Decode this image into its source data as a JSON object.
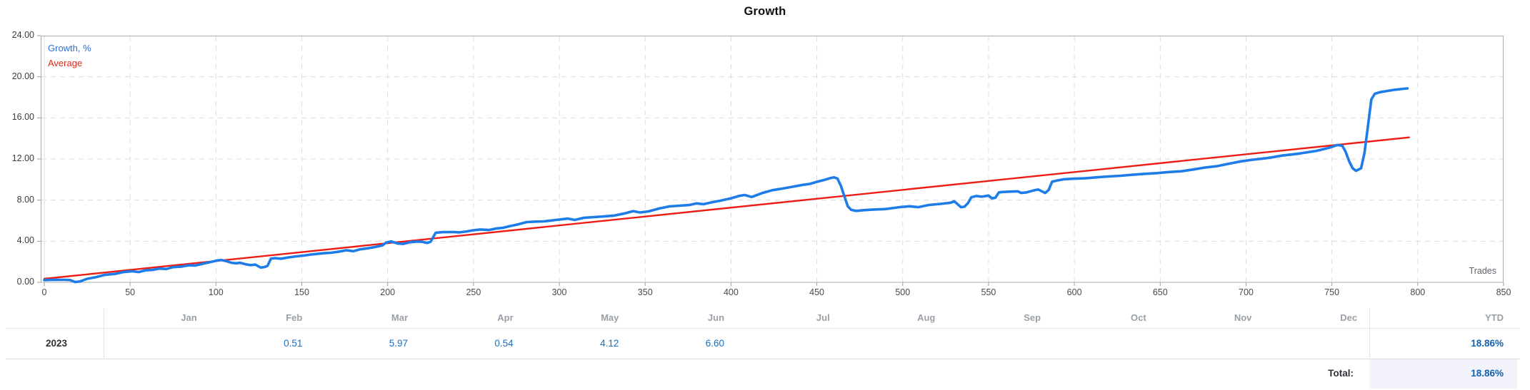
{
  "title": "Growth",
  "legend": {
    "growth_label": "Growth, %",
    "average_label": "Average"
  },
  "axes": {
    "y_ticks": [
      "24.00",
      "20.00",
      "16.00",
      "12.00",
      "8.00",
      "4.00",
      "0.00"
    ],
    "x_ticks": [
      "0",
      "50",
      "100",
      "150",
      "200",
      "250",
      "300",
      "350",
      "400",
      "450",
      "500",
      "550",
      "600",
      "650",
      "700",
      "750",
      "800",
      "850"
    ],
    "x_axis_label": "Trades"
  },
  "chart_data": {
    "type": "line",
    "title": "Growth",
    "xlabel": "Trades",
    "ylabel": "Growth, %",
    "xlim": [
      0,
      850
    ],
    "ylim": [
      0,
      24
    ],
    "grid": true,
    "legend_position": "top-left",
    "series": [
      {
        "name": "Growth, %",
        "color": "#1e7ce8",
        "points": [
          [
            0,
            0.22
          ],
          [
            6,
            0.25
          ],
          [
            12,
            0.24
          ],
          [
            15,
            0.22
          ],
          [
            18,
            0.03
          ],
          [
            21,
            0.1
          ],
          [
            25,
            0.35
          ],
          [
            30,
            0.5
          ],
          [
            35,
            0.72
          ],
          [
            41,
            0.82
          ],
          [
            46,
            1.0
          ],
          [
            51,
            1.08
          ],
          [
            55,
            1.0
          ],
          [
            59,
            1.17
          ],
          [
            63,
            1.21
          ],
          [
            67,
            1.34
          ],
          [
            71,
            1.3
          ],
          [
            75,
            1.48
          ],
          [
            80,
            1.53
          ],
          [
            84,
            1.66
          ],
          [
            88,
            1.64
          ],
          [
            92,
            1.8
          ],
          [
            96,
            1.94
          ],
          [
            100,
            2.1
          ],
          [
            103,
            2.18
          ],
          [
            106,
            2.07
          ],
          [
            109,
            1.9
          ],
          [
            112,
            1.85
          ],
          [
            114,
            1.91
          ],
          [
            117,
            1.77
          ],
          [
            120,
            1.68
          ],
          [
            123,
            1.72
          ],
          [
            126,
            1.44
          ],
          [
            128,
            1.48
          ],
          [
            130,
            1.6
          ],
          [
            132,
            2.3
          ],
          [
            134,
            2.35
          ],
          [
            138,
            2.3
          ],
          [
            142,
            2.42
          ],
          [
            147,
            2.53
          ],
          [
            151,
            2.6
          ],
          [
            155,
            2.7
          ],
          [
            159,
            2.77
          ],
          [
            163,
            2.84
          ],
          [
            167,
            2.88
          ],
          [
            172,
            3.0
          ],
          [
            176,
            3.12
          ],
          [
            180,
            3.03
          ],
          [
            184,
            3.22
          ],
          [
            188,
            3.3
          ],
          [
            193,
            3.45
          ],
          [
            197,
            3.6
          ],
          [
            199,
            3.86
          ],
          [
            202,
            3.98
          ],
          [
            206,
            3.77
          ],
          [
            209,
            3.74
          ],
          [
            213,
            3.9
          ],
          [
            217,
            3.97
          ],
          [
            220,
            3.95
          ],
          [
            223,
            3.83
          ],
          [
            225,
            3.95
          ],
          [
            228,
            4.83
          ],
          [
            232,
            4.88
          ],
          [
            238,
            4.9
          ],
          [
            242,
            4.86
          ],
          [
            246,
            4.95
          ],
          [
            250,
            5.07
          ],
          [
            254,
            5.14
          ],
          [
            259,
            5.09
          ],
          [
            263,
            5.23
          ],
          [
            267,
            5.3
          ],
          [
            271,
            5.46
          ],
          [
            275,
            5.6
          ],
          [
            281,
            5.86
          ],
          [
            285,
            5.9
          ],
          [
            291,
            5.93
          ],
          [
            298,
            6.07
          ],
          [
            305,
            6.2
          ],
          [
            309,
            6.07
          ],
          [
            314,
            6.27
          ],
          [
            320,
            6.35
          ],
          [
            326,
            6.41
          ],
          [
            332,
            6.5
          ],
          [
            338,
            6.7
          ],
          [
            343,
            6.93
          ],
          [
            347,
            6.8
          ],
          [
            352,
            6.9
          ],
          [
            358,
            7.18
          ],
          [
            364,
            7.39
          ],
          [
            370,
            7.46
          ],
          [
            376,
            7.53
          ],
          [
            380,
            7.68
          ],
          [
            384,
            7.6
          ],
          [
            389,
            7.8
          ],
          [
            394,
            7.95
          ],
          [
            400,
            8.18
          ],
          [
            405,
            8.42
          ],
          [
            408,
            8.5
          ],
          [
            412,
            8.3
          ],
          [
            418,
            8.68
          ],
          [
            424,
            8.96
          ],
          [
            430,
            9.12
          ],
          [
            436,
            9.3
          ],
          [
            442,
            9.49
          ],
          [
            446,
            9.58
          ],
          [
            450,
            9.78
          ],
          [
            454,
            9.95
          ],
          [
            458,
            10.15
          ],
          [
            460,
            10.22
          ],
          [
            462,
            10.1
          ],
          [
            464,
            9.4
          ],
          [
            466,
            8.4
          ],
          [
            468,
            7.4
          ],
          [
            470,
            7.05
          ],
          [
            473,
            6.95
          ],
          [
            477,
            7.02
          ],
          [
            483,
            7.08
          ],
          [
            490,
            7.13
          ],
          [
            498,
            7.31
          ],
          [
            504,
            7.4
          ],
          [
            509,
            7.31
          ],
          [
            515,
            7.52
          ],
          [
            522,
            7.63
          ],
          [
            528,
            7.75
          ],
          [
            530,
            7.89
          ],
          [
            534,
            7.31
          ],
          [
            536,
            7.36
          ],
          [
            538,
            7.7
          ],
          [
            540,
            8.28
          ],
          [
            543,
            8.4
          ],
          [
            546,
            8.33
          ],
          [
            550,
            8.44
          ],
          [
            552,
            8.17
          ],
          [
            554,
            8.24
          ],
          [
            556,
            8.75
          ],
          [
            558,
            8.79
          ],
          [
            562,
            8.82
          ],
          [
            567,
            8.86
          ],
          [
            569,
            8.7
          ],
          [
            572,
            8.75
          ],
          [
            576,
            8.93
          ],
          [
            579,
            9.03
          ],
          [
            581,
            8.86
          ],
          [
            583,
            8.7
          ],
          [
            585,
            8.98
          ],
          [
            587,
            9.79
          ],
          [
            590,
            9.91
          ],
          [
            594,
            10.03
          ],
          [
            599,
            10.08
          ],
          [
            606,
            10.12
          ],
          [
            613,
            10.22
          ],
          [
            620,
            10.3
          ],
          [
            627,
            10.37
          ],
          [
            634,
            10.47
          ],
          [
            641,
            10.56
          ],
          [
            648,
            10.63
          ],
          [
            655,
            10.73
          ],
          [
            662,
            10.8
          ],
          [
            669,
            10.97
          ],
          [
            676,
            11.17
          ],
          [
            683,
            11.3
          ],
          [
            690,
            11.54
          ],
          [
            697,
            11.77
          ],
          [
            704,
            11.93
          ],
          [
            711,
            12.06
          ],
          [
            716,
            12.19
          ],
          [
            721,
            12.33
          ],
          [
            726,
            12.43
          ],
          [
            731,
            12.53
          ],
          [
            736,
            12.66
          ],
          [
            741,
            12.79
          ],
          [
            745,
            12.96
          ],
          [
            749,
            13.12
          ],
          [
            753,
            13.36
          ],
          [
            756,
            13.3
          ],
          [
            758,
            12.7
          ],
          [
            760,
            11.8
          ],
          [
            762,
            11.12
          ],
          [
            764,
            10.85
          ],
          [
            767,
            11.1
          ],
          [
            769,
            12.6
          ],
          [
            771,
            15.2
          ],
          [
            773,
            17.8
          ],
          [
            775,
            18.35
          ],
          [
            778,
            18.5
          ],
          [
            782,
            18.62
          ],
          [
            786,
            18.72
          ],
          [
            790,
            18.8
          ],
          [
            794,
            18.87
          ]
        ]
      },
      {
        "name": "Average",
        "color": "#ed1c14",
        "points": [
          [
            0,
            0.35
          ],
          [
            795,
            14.1
          ]
        ]
      }
    ]
  },
  "table": {
    "year": "2023",
    "months": [
      "Jan",
      "Feb",
      "Mar",
      "Apr",
      "May",
      "Jun",
      "Jul",
      "Aug",
      "Sep",
      "Oct",
      "Nov",
      "Dec"
    ],
    "monthly_values": [
      "",
      "0.51",
      "5.97",
      "0.54",
      "4.12",
      "6.60",
      "",
      "",
      "",
      "",
      "",
      ""
    ],
    "ytd_header": "YTD",
    "ytd_value": "18.86%",
    "total_label": "Total:",
    "total_value": "18.86%"
  },
  "colors": {
    "growth_line": "#1e7ce8",
    "average_line": "#ed1c14",
    "legend_growth": "#2e6fd8",
    "legend_average": "#e02819",
    "grid": "#dcdcdc",
    "plot_border": "#ababab",
    "zero_column_line": "#ececec",
    "tick": "#9e9e9e",
    "month_header_text": "#9aa0a8",
    "value_text": "#1a6fc0",
    "ytd_text": "#1361ac",
    "year_text": "#2f3237",
    "total_cell_bg": "#f2f3fa"
  }
}
